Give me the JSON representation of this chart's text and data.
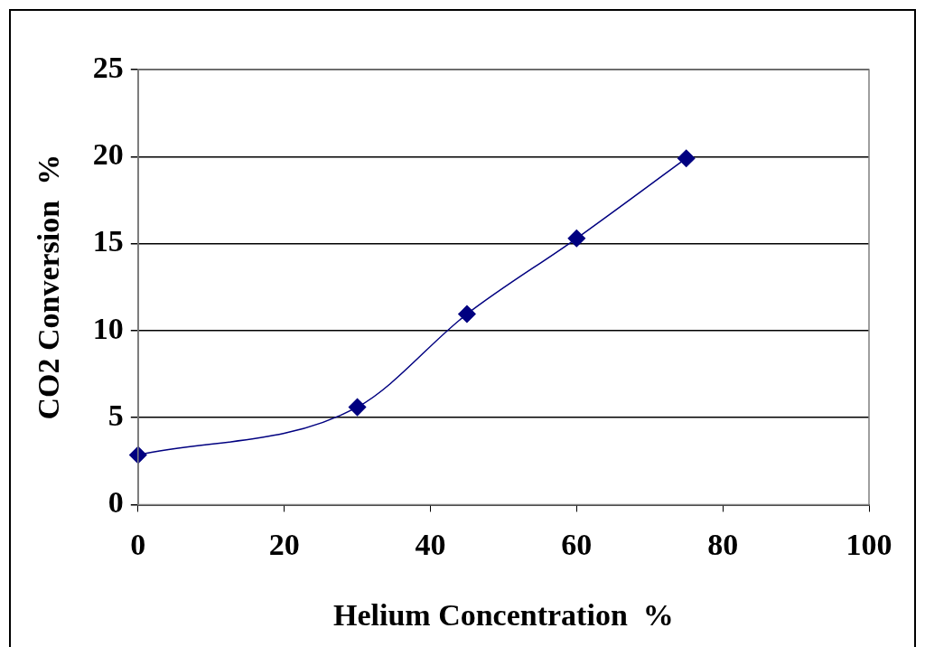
{
  "chart_data": {
    "type": "line",
    "xlabel": "Helium Concentration  %",
    "ylabel": "CO2 Conversion  %",
    "x": [
      0,
      30,
      45,
      60,
      75
    ],
    "series": [
      {
        "color": "#000080",
        "values": [
          2.85,
          5.6,
          10.95,
          15.3,
          19.9
        ]
      }
    ],
    "xlim": [
      0,
      100
    ],
    "xticks": [
      0,
      20,
      40,
      60,
      80,
      100
    ],
    "ylim": [
      0,
      25
    ],
    "yticks": [
      0,
      5,
      10,
      15,
      20,
      25
    ],
    "grid": "y",
    "legend": false,
    "marker": "diamond",
    "line_style": "solid"
  }
}
